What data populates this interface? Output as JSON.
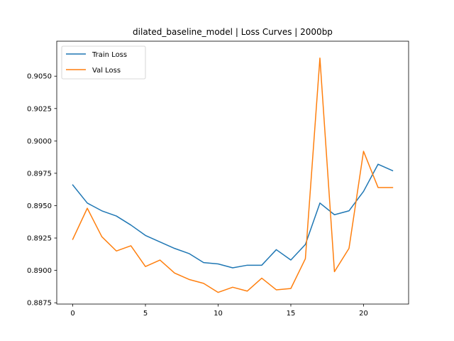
{
  "chart_data": {
    "type": "line",
    "title": "dilated_baseline_model | Loss Curves | 2000bp",
    "xlabel": "",
    "ylabel": "",
    "xlim": [
      -1.1,
      23.1
    ],
    "ylim": [
      0.8874,
      0.9077
    ],
    "xticks": [
      0,
      5,
      10,
      15,
      20
    ],
    "yticks": [
      0.8875,
      0.89,
      0.8925,
      0.895,
      0.8975,
      0.9,
      0.9025,
      0.905
    ],
    "ytick_labels": [
      "0.8875",
      "0.8900",
      "0.8925",
      "0.8950",
      "0.8975",
      "0.9000",
      "0.9025",
      "0.9050"
    ],
    "x": [
      0,
      1,
      2,
      3,
      4,
      5,
      6,
      7,
      8,
      9,
      10,
      11,
      12,
      13,
      14,
      15,
      16,
      17,
      18,
      19,
      20,
      21,
      22
    ],
    "series": [
      {
        "name": "Train Loss",
        "color": "#1f77b4",
        "values": [
          0.8966,
          0.8952,
          0.8946,
          0.8942,
          0.8935,
          0.8927,
          0.8922,
          0.8917,
          0.8913,
          0.8906,
          0.8905,
          0.8902,
          0.8904,
          0.8904,
          0.8916,
          0.8908,
          0.892,
          0.8952,
          0.8943,
          0.8946,
          0.8961,
          0.8982,
          0.8977
        ]
      },
      {
        "name": "Val Loss",
        "color": "#ff7f0e",
        "values": [
          0.8924,
          0.8948,
          0.8926,
          0.8915,
          0.8919,
          0.8903,
          0.8908,
          0.8898,
          0.8893,
          0.889,
          0.8883,
          0.8887,
          0.8884,
          0.8894,
          0.8885,
          0.8886,
          0.8909,
          0.9064,
          0.8899,
          0.8917,
          0.8992,
          0.8964,
          0.8964
        ]
      }
    ],
    "legend_position": "top-left",
    "grid": false
  }
}
